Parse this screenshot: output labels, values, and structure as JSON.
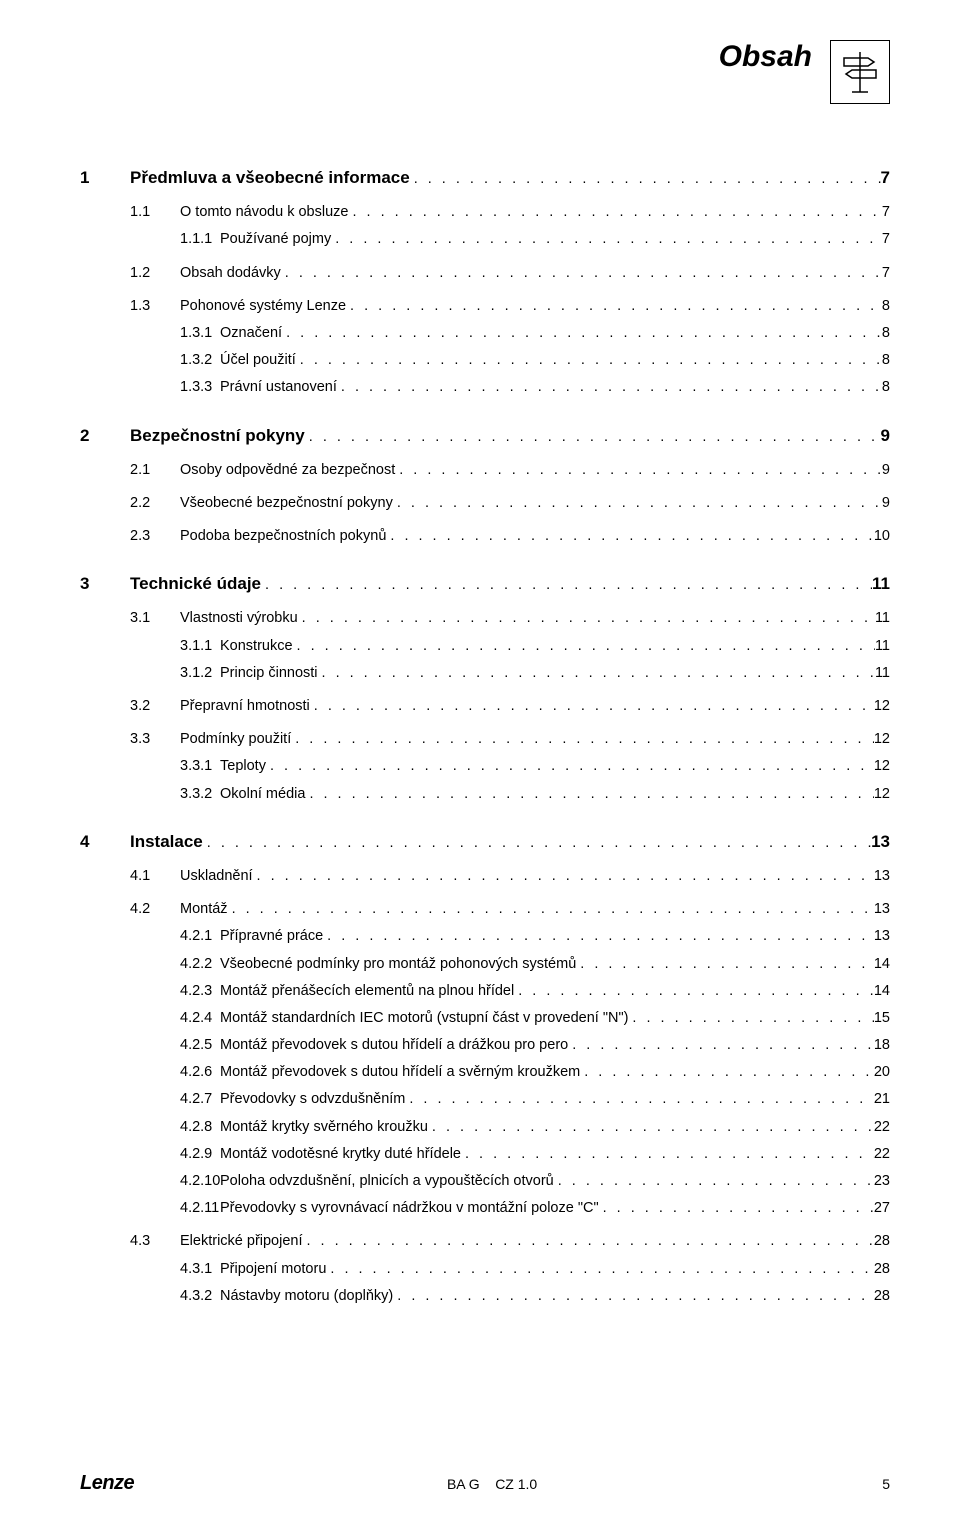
{
  "header": {
    "title": "Obsah"
  },
  "footer": {
    "brand": "Lenze",
    "center": "BA G    CZ 1.0",
    "page": "5"
  },
  "toc": [
    {
      "level": 1,
      "num": "1",
      "title": "Předmluva a všeobecné informace",
      "page": "7"
    },
    {
      "level": 2,
      "num": "1.1",
      "title": "O tomto návodu k obsluze",
      "page": "7"
    },
    {
      "level": 3,
      "num": "1.1.1",
      "title": "Používané pojmy",
      "page": "7"
    },
    {
      "level": 2,
      "num": "1.2",
      "title": "Obsah dodávky",
      "page": "7"
    },
    {
      "level": 2,
      "num": "1.3",
      "title": "Pohonové systémy Lenze",
      "page": "8"
    },
    {
      "level": 3,
      "num": "1.3.1",
      "title": "Označení",
      "page": "8"
    },
    {
      "level": 3,
      "num": "1.3.2",
      "title": "Účel použití",
      "page": "8"
    },
    {
      "level": 3,
      "num": "1.3.3",
      "title": "Právní ustanovení",
      "page": "8"
    },
    {
      "level": 1,
      "num": "2",
      "title": "Bezpečnostní pokyny",
      "page": "9"
    },
    {
      "level": 2,
      "num": "2.1",
      "title": "Osoby odpovědné za bezpečnost",
      "page": "9"
    },
    {
      "level": 2,
      "num": "2.2",
      "title": "Všeobecné bezpečnostní pokyny",
      "page": "9"
    },
    {
      "level": 2,
      "num": "2.3",
      "title": "Podoba bezpečnostních pokynů",
      "page": "10"
    },
    {
      "level": 1,
      "num": "3",
      "title": "Technické údaje",
      "page": "11"
    },
    {
      "level": 2,
      "num": "3.1",
      "title": "Vlastnosti výrobku",
      "page": "11"
    },
    {
      "level": 3,
      "num": "3.1.1",
      "title": "Konstrukce",
      "page": "11"
    },
    {
      "level": 3,
      "num": "3.1.2",
      "title": "Princip činnosti",
      "page": "11"
    },
    {
      "level": 2,
      "num": "3.2",
      "title": "Přepravní hmotnosti",
      "page": "12"
    },
    {
      "level": 2,
      "num": "3.3",
      "title": "Podmínky použití",
      "page": "12"
    },
    {
      "level": 3,
      "num": "3.3.1",
      "title": "Teploty",
      "page": "12"
    },
    {
      "level": 3,
      "num": "3.3.2",
      "title": "Okolní média",
      "page": "12"
    },
    {
      "level": 1,
      "num": "4",
      "title": "Instalace",
      "page": "13"
    },
    {
      "level": 2,
      "num": "4.1",
      "title": "Uskladnění",
      "page": "13"
    },
    {
      "level": 2,
      "num": "4.2",
      "title": "Montáž",
      "page": "13"
    },
    {
      "level": 3,
      "num": "4.2.1",
      "title": "Přípravné práce",
      "page": "13"
    },
    {
      "level": 3,
      "num": "4.2.2",
      "title": "Všeobecné podmínky pro montáž pohonových systémů",
      "page": "14"
    },
    {
      "level": 3,
      "num": "4.2.3",
      "title": "Montáž přenášecích elementů na plnou hřídel",
      "page": "14"
    },
    {
      "level": 3,
      "num": "4.2.4",
      "title": "Montáž standardních IEC motorů (vstupní část v provedení \"N\")",
      "page": "15"
    },
    {
      "level": 3,
      "num": "4.2.5",
      "title": "Montáž převodovek s dutou hřídelí a drážkou pro pero",
      "page": "18"
    },
    {
      "level": 3,
      "num": "4.2.6",
      "title": "Montáž převodovek s dutou hřídelí a svěrným kroužkem",
      "page": "20"
    },
    {
      "level": 3,
      "num": "4.2.7",
      "title": "Převodovky s odvzdušněním",
      "page": "21"
    },
    {
      "level": 3,
      "num": "4.2.8",
      "title": "Montáž krytky svěrného kroužku",
      "page": "22"
    },
    {
      "level": 3,
      "num": "4.2.9",
      "title": "Montáž vodotěsné krytky duté hřídele",
      "page": "22"
    },
    {
      "level": 3,
      "num": "4.2.10",
      "title": "Poloha odvzdušnění, plnicích a vypouštěcích otvorů",
      "page": "23"
    },
    {
      "level": 3,
      "num": "4.2.11",
      "title": "Převodovky s vyrovnávací nádržkou v montážní poloze \"C\"",
      "page": "27"
    },
    {
      "level": 2,
      "num": "4.3",
      "title": "Elektrické připojení",
      "page": "28"
    },
    {
      "level": 3,
      "num": "4.3.1",
      "title": "Připojení motoru",
      "page": "28"
    },
    {
      "level": 3,
      "num": "4.3.2",
      "title": "Nástavby motoru (doplňky)",
      "page": "28"
    }
  ]
}
